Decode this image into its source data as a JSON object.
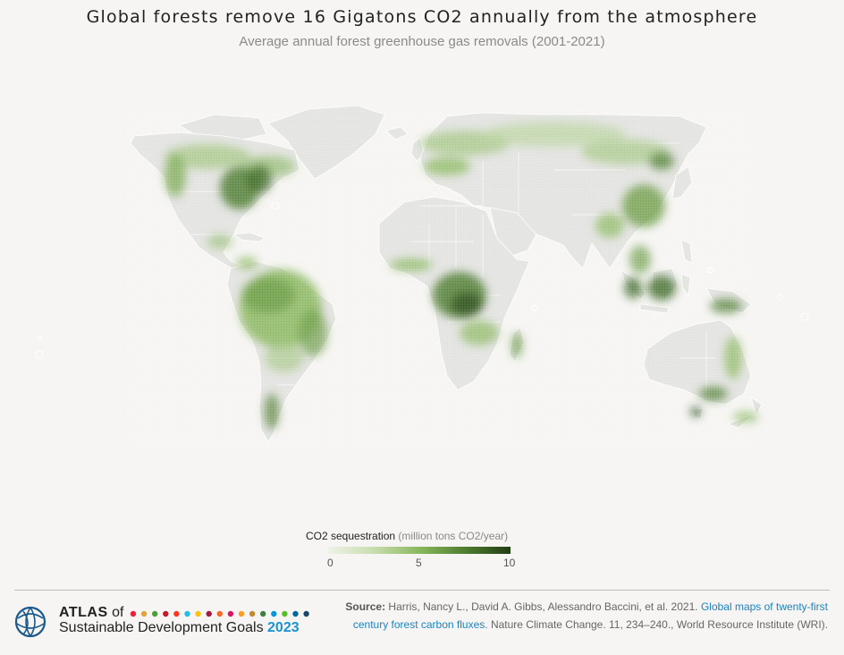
{
  "header": {
    "title": "Global forests remove 16 Gigatons CO2 annually from the atmosphere",
    "subtitle": "Average annual forest greenhouse gas removals (2001-2021)"
  },
  "legend": {
    "label": "CO2 sequestration",
    "unit": "(million tons CO2/year)",
    "min": "0",
    "mid": "5",
    "max": "10",
    "colors": [
      "#eef2e8",
      "#8ab85e",
      "#233d16"
    ]
  },
  "footer": {
    "atlas_word": "ATLAS",
    "of_word": "of",
    "sdg_text": "Sustainable Development Goals",
    "year": "2023",
    "sdg_dot_colors": [
      "#e5243b",
      "#dda63a",
      "#4c9f38",
      "#c5192d",
      "#ff3a21",
      "#26bde2",
      "#fcc30b",
      "#a21942",
      "#fd6925",
      "#dd1367",
      "#fd9d24",
      "#bf8b2e",
      "#3f7e44",
      "#0a97d9",
      "#56c02b",
      "#00689d",
      "#19486a"
    ],
    "source_label": "Source:",
    "source_text": "Harris, Nancy L., David A. Gibbs, Alessandro Baccini, et al. 2021.",
    "source_link": "Global maps of twenty-first century forest carbon fluxes.",
    "source_tail": "Nature Climate Change. 11, 234–240., World Resource Institute (WRI)."
  }
}
